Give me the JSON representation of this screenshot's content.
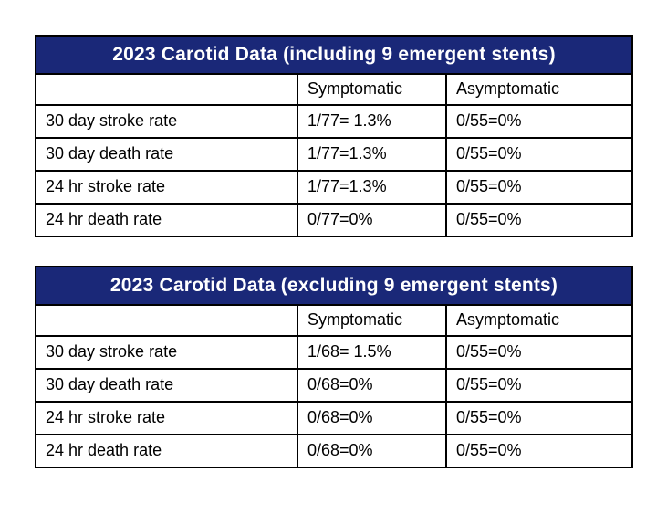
{
  "page": {
    "background_color": "#ffffff",
    "text_color": "#000000",
    "border_color": "#000000",
    "header_bg_color": "#1a2878",
    "header_text_color": "#ffffff"
  },
  "tables": [
    {
      "title": "2023 Carotid Data (including 9 emergent stents)",
      "columns": [
        "",
        "Symptomatic",
        "Asymptomatic"
      ],
      "rows": [
        {
          "label": "30 day stroke rate",
          "symptomatic": "1/77= 1.3%",
          "asymptomatic": "0/55=0%"
        },
        {
          "label": "30 day death rate",
          "symptomatic": "1/77=1.3%",
          "asymptomatic": "0/55=0%"
        },
        {
          "label": "24 hr stroke rate",
          "symptomatic": "1/77=1.3%",
          "asymptomatic": "0/55=0%"
        },
        {
          "label": "24 hr death rate",
          "symptomatic": "0/77=0%",
          "asymptomatic": "0/55=0%"
        }
      ]
    },
    {
      "title": "2023 Carotid Data (excluding 9 emergent stents)",
      "columns": [
        "",
        "Symptomatic",
        "Asymptomatic"
      ],
      "rows": [
        {
          "label": "30 day stroke rate",
          "symptomatic": "1/68= 1.5%",
          "asymptomatic": "0/55=0%"
        },
        {
          "label": "30 day death rate",
          "symptomatic": "0/68=0%",
          "asymptomatic": "0/55=0%"
        },
        {
          "label": "24 hr stroke rate",
          "symptomatic": "0/68=0%",
          "asymptomatic": "0/55=0%"
        },
        {
          "label": "24 hr death rate",
          "symptomatic": "0/68=0%",
          "asymptomatic": "0/55=0%"
        }
      ]
    }
  ]
}
